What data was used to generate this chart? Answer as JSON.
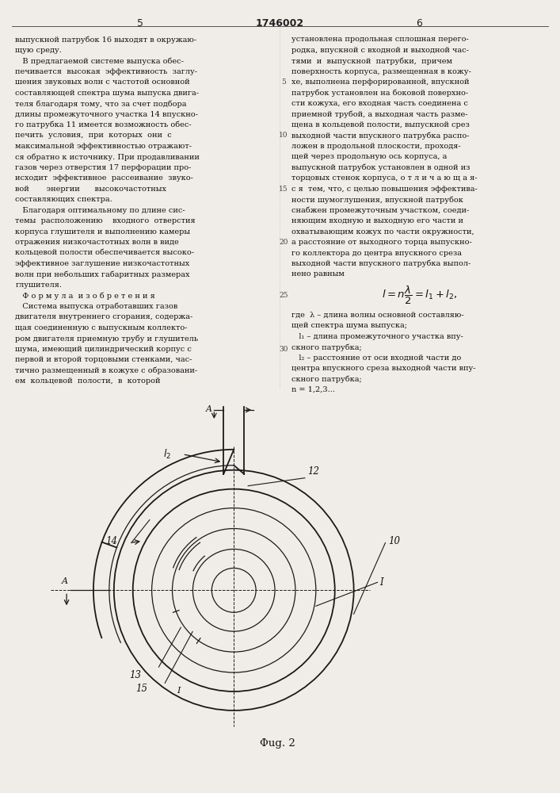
{
  "page_width": 7.07,
  "page_height": 10.0,
  "bg_color": "#f0ede8",
  "header": {
    "left_num": "5",
    "center_num": "1746002",
    "right_num": "6"
  },
  "left_col_lines": [
    "выпускной патрубок 16 выходят в окружаю-",
    "щую среду.",
    "   В предлагаемой системе выпуска обес-",
    "печивается  высокая  эффективность  заглу-",
    "шения звуковых волн с частотой основной",
    "составляющей спектра шума выпуска двига-",
    "теля благодаря тому, что за счет подбора",
    "длины промежуточного участка 14 впускно-",
    "го патрубка 11 имеется возможность обес-",
    "печить  условия,  при  которых  они  с",
    "максимальной эффективностью отражают-",
    "ся обратно к источнику. При продавливании",
    "газов через отверстия 17 перфорации про-",
    "исходит  эффективное  рассеивание  звуко-",
    "вой       энергии      высокочастотных",
    "составляющих спектра.",
    "   Благодаря оптимальному по длине сис-",
    "темы  расположению    входного  отверстия",
    "корпуса глушителя и выполнению камеры",
    "отражения низкочастотных волн в виде",
    "кольцевой полости обеспечивается высоко-",
    "эффективное заглушение низкочастотных",
    "волн при небольших габаритных размерах",
    "глушителя.",
    "   Ф о р м у л а  и з о б р е т е н и я",
    "   Система выпуска отработавших газов",
    "двигателя внутреннего сгорания, содержа-",
    "щая соединенную с выпускным коллекто-",
    "ром двигателя приемную трубу и глушитель",
    "шума, имеющий цилиндрический корпус с",
    "первой и второй торцовыми стенками, час-",
    "тично размещенный в кожухе с образовани-",
    "ем  кольцевой  полости,  в  которой"
  ],
  "right_col_lines": [
    "установлена продольная сплошная перего-",
    "родка, впускной с входной и выходной час-",
    "тями  и  выпускной  патрубки,  причем",
    "поверхность корпуса, размещенная в кожу-",
    "хе, выполнена перфорированной, впускной",
    "патрубок установлен на боковой поверхно-",
    "сти кожуха, его входная часть соединена с",
    "приемной трубой, а выходная часть разме-",
    "щена в кольцевой полости, выпускной срез",
    "выходной части впускного патрубка распо-",
    "ложен в продольной плоскости, проходя-",
    "щей через продольную ось корпуса, а",
    "выпускной патрубок установлен в одной из",
    "торцовых стенок корпуса, о т л и ч а ю щ а я-",
    "с я  тем, что, с целью повышения эффектива-",
    "ности шумоглушения, впускной патрубок",
    "снабжен промежуточным участком, соеди-",
    "няющим входную и выходную его части и",
    "охватывающим кожух по части окружности,",
    "а расстояние от выходного торца выпускно-",
    "го коллектора до центра впускного среза",
    "выходной части впускного патрубка выпол-",
    "нено равным"
  ],
  "right_col_lines2": [
    "где  λ – длина волны основной составляю-",
    "щей спектра шума выпуска;",
    "   l₁ – длина промежуточного участка впу-",
    "скного патрубка;",
    "   l₂ – расстояние от оси входной части до",
    "центра впускного среза выходной части впу-",
    "скного патрубка;",
    "n = 1,2,3..."
  ],
  "line_num_rows": [
    4,
    9,
    14,
    19,
    24,
    29
  ],
  "line_num_vals": [
    "5",
    "10",
    "15",
    "20",
    "25",
    "30"
  ],
  "fig_caption": "Φug. 2"
}
